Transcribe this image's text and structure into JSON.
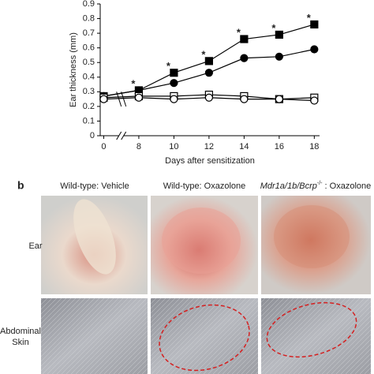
{
  "chart_data": {
    "type": "line",
    "y_label": "Ear thickness (mm)",
    "x_label": "Days after sensitization",
    "x": [
      0,
      8,
      10,
      12,
      14,
      16,
      18
    ],
    "xlim": [
      -0.2,
      18.3
    ],
    "xticks": [
      0,
      8,
      10,
      12,
      14,
      16,
      18
    ],
    "xbreak": [
      1,
      7
    ],
    "ylim": [
      0,
      0.9
    ],
    "yticks": [
      0,
      0.1,
      0.2,
      0.3,
      0.4,
      0.5,
      0.6,
      0.7,
      0.8,
      0.9
    ],
    "series": [
      {
        "color": "#000000",
        "marker": "square",
        "filled": true,
        "values": [
          0.27,
          0.31,
          0.43,
          0.51,
          0.66,
          0.69,
          0.76
        ]
      },
      {
        "color": "#000000",
        "marker": "circle",
        "filled": true,
        "values": [
          0.27,
          0.31,
          0.36,
          0.43,
          0.53,
          0.54,
          0.59
        ]
      },
      {
        "color": "#000000",
        "marker": "square",
        "filled": false,
        "values": [
          0.26,
          0.27,
          0.27,
          0.28,
          0.27,
          0.25,
          0.26
        ]
      },
      {
        "color": "#000000",
        "marker": "circle",
        "filled": false,
        "values": [
          0.25,
          0.26,
          0.25,
          0.26,
          0.25,
          0.25,
          0.24
        ]
      }
    ],
    "annotations": [
      {
        "text": "*",
        "x": 8,
        "y": 0.35
      },
      {
        "text": "*",
        "x": 10,
        "y": 0.47
      },
      {
        "text": "*",
        "x": 12,
        "y": 0.55
      },
      {
        "text": "*",
        "x": 14,
        "y": 0.7
      },
      {
        "text": "*",
        "x": 16,
        "y": 0.73
      },
      {
        "text": "*",
        "x": 18,
        "y": 0.8
      }
    ]
  },
  "panel": {
    "label": "b",
    "columns": [
      "Wild-type: Vehicle",
      "Wild-type: Oxazolone",
      {
        "italic": "Mdr1a/1b/Bcrp",
        "sup": "-/-",
        "rest": " : Oxazolone"
      }
    ],
    "rows": [
      "Ear",
      [
        "Abdominal",
        "Skin"
      ]
    ]
  }
}
